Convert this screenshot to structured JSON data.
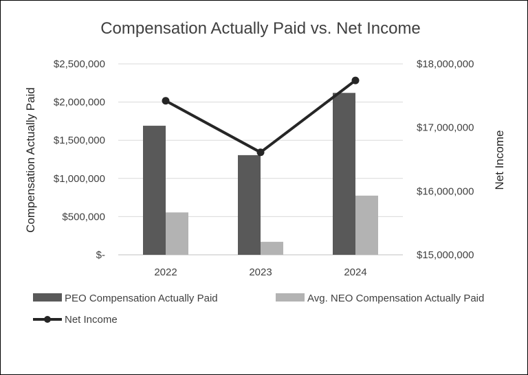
{
  "chart_data": {
    "type": "bar",
    "title": "Compensation Actually Paid vs. Net Income",
    "categories": [
      "2022",
      "2023",
      "2024"
    ],
    "series": [
      {
        "name": "PEO Compensation Actually Paid",
        "type": "bar",
        "axis": "left",
        "color": "#595959",
        "values": [
          1690000,
          1305000,
          2120000
        ]
      },
      {
        "name": "Avg. NEO Compensation Actually Paid",
        "type": "bar",
        "axis": "left",
        "color": "#b3b3b3",
        "values": [
          555000,
          170000,
          775000
        ]
      },
      {
        "name": "Net Income",
        "type": "line",
        "axis": "right",
        "color": "#262626",
        "values": [
          17420000,
          16610000,
          17740000
        ]
      }
    ],
    "ylabel": "Compensation Actually Paid",
    "y2label": "Net Income",
    "ylim": [
      0,
      2500000
    ],
    "y2lim": [
      15000000,
      18000000
    ],
    "yticks": [
      "$-",
      "$500,000",
      "$1,000,000",
      "$1,500,000",
      "$2,000,000",
      "$2,500,000"
    ],
    "y2ticks": [
      "$15,000,000",
      "$16,000,000",
      "$17,000,000",
      "$18,000,000"
    ],
    "grid": true,
    "legend_position": "bottom"
  }
}
